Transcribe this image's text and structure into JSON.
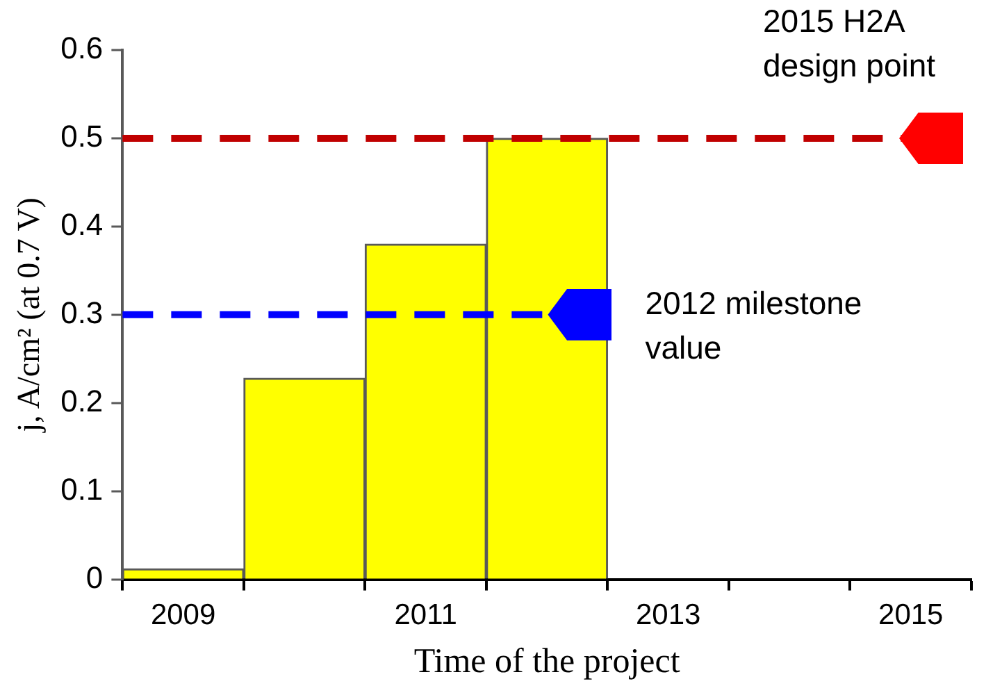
{
  "chart_data": {
    "type": "bar",
    "categories": [
      "2009",
      null,
      "2011",
      null,
      "2013",
      null,
      "2015"
    ],
    "values": [
      0.012,
      0.228,
      0.38,
      0.5,
      null,
      null,
      null
    ],
    "color": "#ffff00",
    "xlabel": "Time of the project",
    "ylabel": "j, A/cm² (at 0.7 V)",
    "ylim": [
      0,
      0.6
    ],
    "yticks": [
      0,
      0.1,
      0.2,
      0.3,
      0.4,
      0.5,
      0.6
    ],
    "grid": false,
    "legend": false,
    "ref_lines": [
      {
        "axis": "y",
        "value": 0.5,
        "label": "2015 H2A design point",
        "color": "#c00000",
        "line_style": "dashed"
      },
      {
        "axis": "y",
        "value": 0.3,
        "label": "2012 milestone value",
        "color": "#0000ff",
        "line_style": "dashed"
      }
    ]
  }
}
